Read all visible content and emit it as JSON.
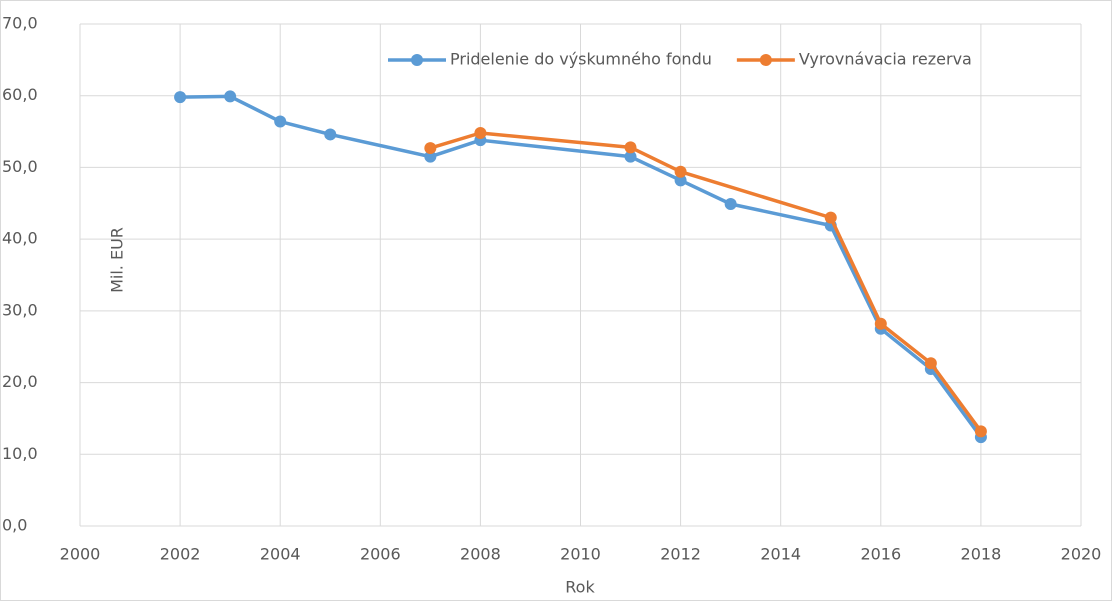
{
  "chart_data": {
    "type": "line",
    "xlabel": "Rok",
    "ylabel": "Mil. EUR",
    "series": [
      {
        "name": "Pridelenie do výskumného fondu",
        "color": "#5b9bd5",
        "x": [
          2002,
          2003,
          2004,
          2005,
          2007,
          2008,
          2011,
          2012,
          2013,
          2015,
          2016,
          2017,
          2018
        ],
        "values": [
          59.8,
          59.9,
          56.4,
          54.6,
          51.5,
          53.8,
          51.5,
          48.2,
          44.9,
          41.9,
          27.5,
          21.9,
          12.4
        ]
      },
      {
        "name": "Vyrovnávacia rezerva",
        "color": "#ed7d31",
        "x": [
          2007,
          2008,
          2011,
          2012,
          2015,
          2016,
          2017,
          2018
        ],
        "values": [
          52.7,
          54.8,
          52.8,
          49.4,
          43.0,
          28.2,
          22.7,
          13.2
        ]
      }
    ],
    "xlim": [
      2000,
      2020
    ],
    "xticks": [
      2000,
      2002,
      2004,
      2006,
      2008,
      2010,
      2012,
      2014,
      2016,
      2018,
      2020
    ],
    "ylim": [
      0,
      70
    ],
    "yticks": [
      {
        "value": 0,
        "label": "0,0"
      },
      {
        "value": 10,
        "label": "10,0"
      },
      {
        "value": 20,
        "label": "20,0"
      },
      {
        "value": 30,
        "label": "30,0"
      },
      {
        "value": 40,
        "label": "40,0"
      },
      {
        "value": 50,
        "label": "50,0"
      },
      {
        "value": 60,
        "label": "60,0"
      },
      {
        "value": 70,
        "label": "70,0"
      }
    ],
    "grid": true,
    "legend": "top-right"
  }
}
